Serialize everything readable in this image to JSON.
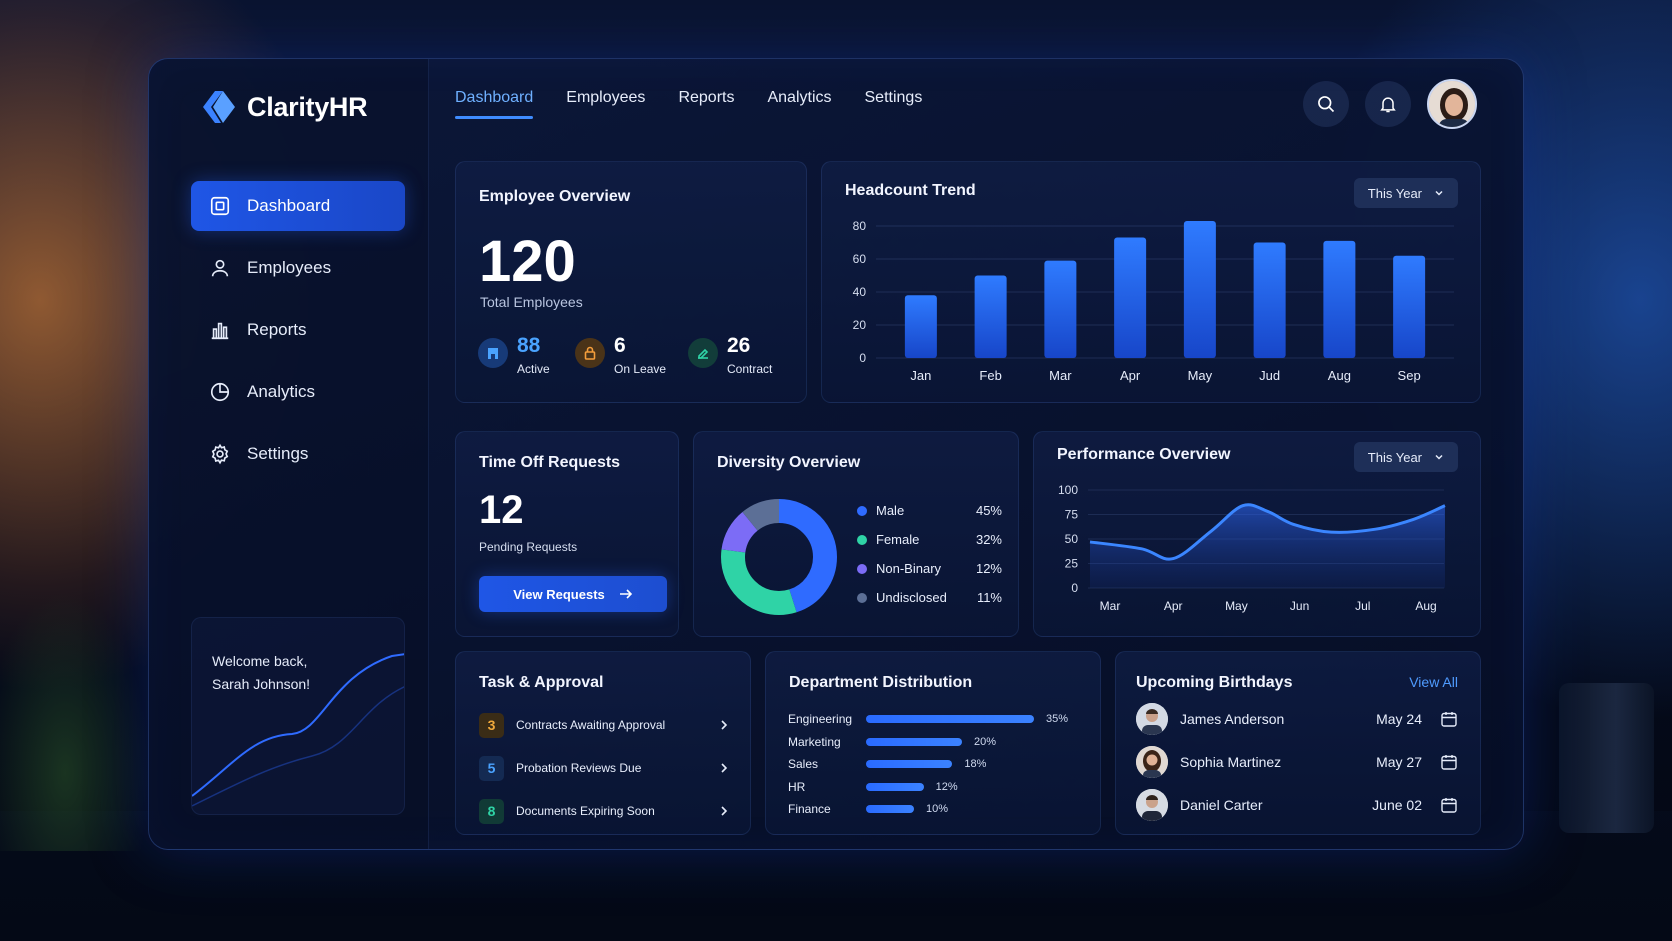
{
  "app": {
    "name": "ClarityHR"
  },
  "topnav": [
    {
      "label": "Dashboard",
      "active": true
    },
    {
      "label": "Employees",
      "active": false
    },
    {
      "label": "Reports",
      "active": false
    },
    {
      "label": "Analytics",
      "active": false
    },
    {
      "label": "Settings",
      "active": false
    }
  ],
  "sidebar": {
    "items": [
      {
        "label": "Dashboard",
        "icon": "dashboard-icon",
        "active": true
      },
      {
        "label": "Employees",
        "icon": "user-icon",
        "active": false
      },
      {
        "label": "Reports",
        "icon": "bar-chart-icon",
        "active": false
      },
      {
        "label": "Analytics",
        "icon": "pie-chart-icon",
        "active": false
      },
      {
        "label": "Settings",
        "icon": "gear-icon",
        "active": false
      }
    ],
    "welcome_line1": "Welcome back,",
    "welcome_line2": "Sarah Johnson!"
  },
  "employee_overview": {
    "title": "Employee Overview",
    "total": "120",
    "total_label": "Total Employees",
    "stats": [
      {
        "value": "88",
        "label": "Active",
        "color": "#4aa3ff",
        "icon": "building-icon"
      },
      {
        "value": "6",
        "label": "On Leave",
        "color": "#f59e3c",
        "icon": "lock-icon"
      },
      {
        "value": "26",
        "label": "Contract",
        "color": "#2fd3a6",
        "icon": "contract-icon"
      }
    ]
  },
  "headcount": {
    "title": "Headcount Trend",
    "range": "This Year"
  },
  "time_off": {
    "title": "Time Off Requests",
    "count": "12",
    "count_label": "Pending Requests",
    "button": "View Requests"
  },
  "diversity": {
    "title": "Diversity Overview",
    "items": [
      {
        "name": "Male",
        "pct": "45%",
        "value": 45,
        "color": "#2f6bff"
      },
      {
        "name": "Female",
        "pct": "32%",
        "value": 32,
        "color": "#2fd3a6"
      },
      {
        "name": "Non-Binary",
        "pct": "12%",
        "value": 12,
        "color": "#7c6cf6"
      },
      {
        "name": "Undisclosed",
        "pct": "11%",
        "value": 11,
        "color": "#5c6f96"
      }
    ]
  },
  "performance": {
    "title": "Performance Overview",
    "range": "This Year"
  },
  "tasks": {
    "title": "Task & Approval",
    "items": [
      {
        "count": "3",
        "label": "Contracts Awaiting Approval",
        "color": "#f0a93c",
        "bg": "#3a2c16"
      },
      {
        "count": "5",
        "label": "Probation Reviews Due",
        "color": "#4aa3ff",
        "bg": "#142a52"
      },
      {
        "count": "8",
        "label": "Documents Expiring Soon",
        "color": "#2fd3a6",
        "bg": "#113a36"
      }
    ]
  },
  "departments": {
    "title": "Department Distribution",
    "items": [
      {
        "name": "Engineering",
        "pct": "35%",
        "value": 35
      },
      {
        "name": "Marketing",
        "pct": "20%",
        "value": 20
      },
      {
        "name": "Sales",
        "pct": "18%",
        "value": 18
      },
      {
        "name": "HR",
        "pct": "12%",
        "value": 12
      },
      {
        "name": "Finance",
        "pct": "10%",
        "value": 10
      }
    ]
  },
  "birthdays": {
    "title": "Upcoming Birthdays",
    "view_all": "View All",
    "items": [
      {
        "name": "James Anderson",
        "date": "May 24"
      },
      {
        "name": "Sophia Martinez",
        "date": "May 27"
      },
      {
        "name": "Daniel Carter",
        "date": "June 02"
      }
    ]
  },
  "chart_data": [
    {
      "type": "bar",
      "title": "Headcount Trend",
      "categories": [
        "Jan",
        "Feb",
        "Mar",
        "Apr",
        "May",
        "Jud",
        "Aug",
        "Sep"
      ],
      "values": [
        38,
        50,
        59,
        73,
        83,
        70,
        71,
        62
      ],
      "ylim": [
        0,
        80
      ],
      "yticks": [
        0,
        20,
        40,
        60,
        80
      ],
      "grid": true,
      "color": "#2a6bff"
    },
    {
      "type": "area",
      "title": "Performance Overview",
      "categories": [
        "Mar",
        "Apr",
        "May",
        "Jun",
        "Jul",
        "Aug"
      ],
      "x": [
        0,
        0.5,
        1,
        1.6,
        2.1,
        2.5,
        2.9,
        3.5,
        4.2,
        4.8,
        5.3
      ],
      "values": [
        47,
        40,
        30,
        58,
        84,
        78,
        65,
        57,
        60,
        70,
        84
      ],
      "ylim": [
        0,
        100
      ],
      "yticks": [
        0,
        25,
        50,
        75,
        100
      ],
      "grid": true,
      "color": "#2f7bff"
    },
    {
      "type": "pie",
      "title": "Diversity Overview",
      "labels": [
        "Male",
        "Female",
        "Non-Binary",
        "Undisclosed"
      ],
      "values": [
        45,
        32,
        12,
        11
      ]
    }
  ]
}
